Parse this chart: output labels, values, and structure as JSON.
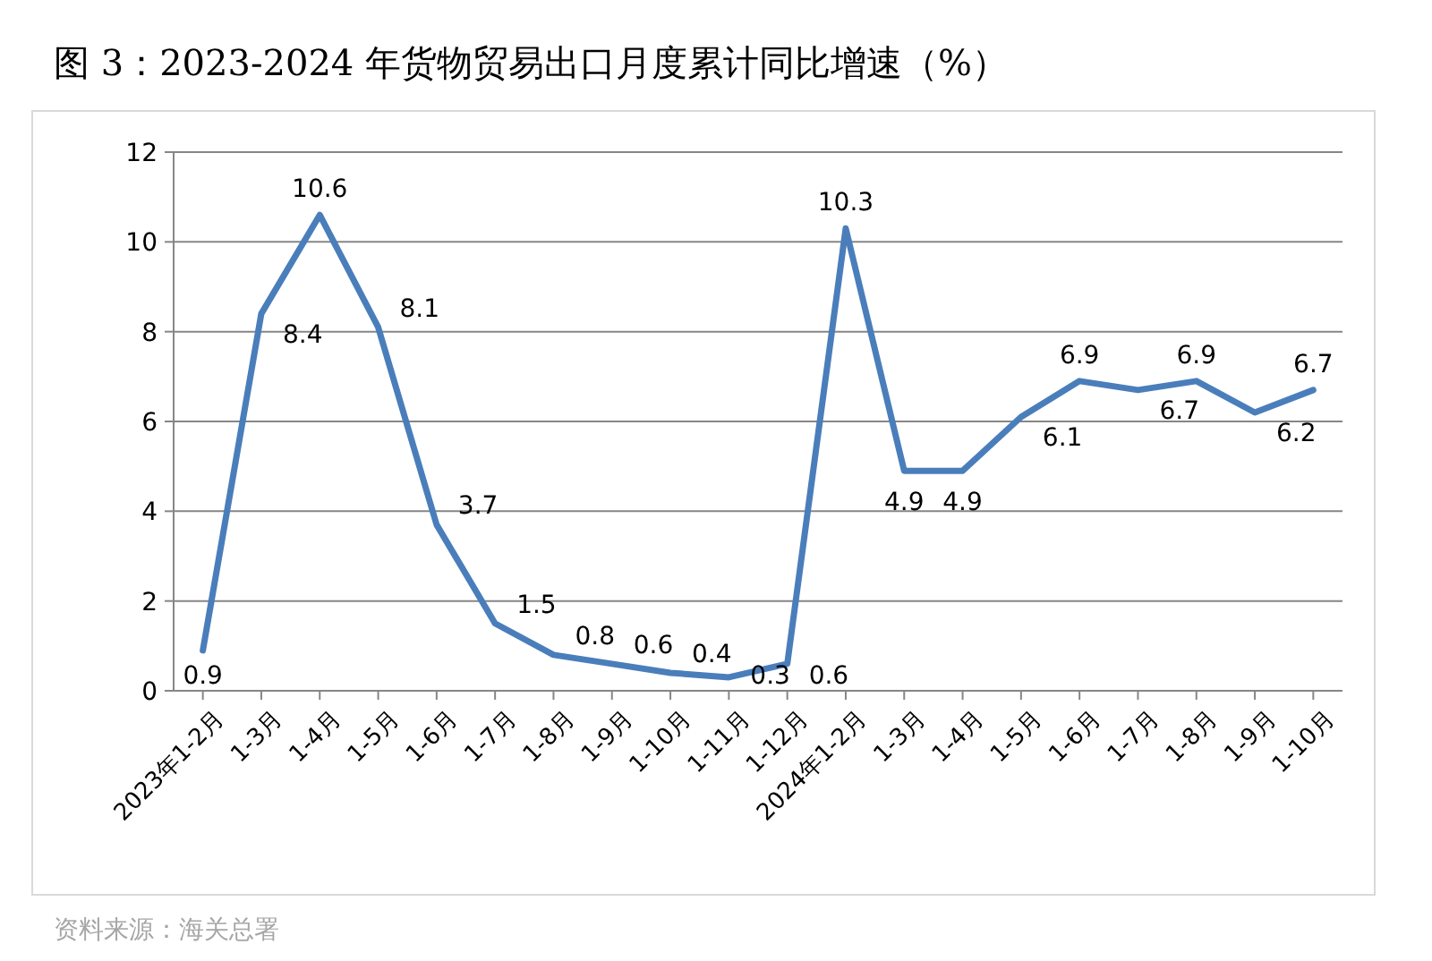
{
  "chart_data": {
    "type": "line",
    "title": "图 3：2023-2024 年货物贸易出口月度累计同比增速（%）",
    "categories": [
      "2023年1-2月",
      "1-3月",
      "1-4月",
      "1-5月",
      "1-6月",
      "1-7月",
      "1-8月",
      "1-9月",
      "1-10月",
      "1-11月",
      "1-12月",
      "2024年1-2月",
      "1-3月",
      "1-4月",
      "1-5月",
      "1-6月",
      "1-7月",
      "1-8月",
      "1-9月",
      "1-10月"
    ],
    "series": [
      {
        "color": "#4a7ebb",
        "values": [
          0.9,
          8.4,
          10.6,
          8.1,
          3.7,
          1.5,
          0.8,
          0.6,
          0.4,
          0.3,
          0.6,
          10.3,
          4.9,
          4.9,
          6.1,
          6.9,
          6.7,
          6.9,
          6.2,
          6.7
        ]
      }
    ],
    "ylim": [
      0,
      12
    ],
    "yticks": [
      0,
      2,
      4,
      6,
      8,
      10,
      12
    ],
    "grid": "y",
    "data_labels": true,
    "marker": "none",
    "line_style": "solid",
    "annotations": [
      "资料来源：海关总署"
    ]
  }
}
